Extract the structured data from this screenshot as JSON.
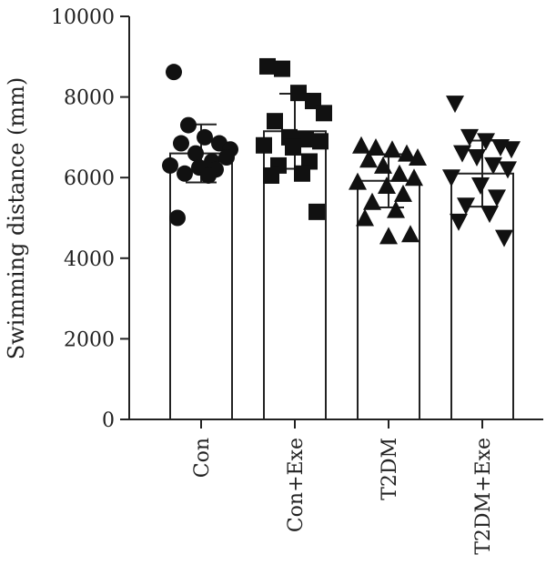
{
  "chart_data": {
    "type": "bar",
    "title": "",
    "xlabel": "",
    "ylabel": "Swimming distance (mm)",
    "ylim": [
      0,
      10000
    ],
    "yticks": [
      0,
      2000,
      4000,
      6000,
      8000,
      10000
    ],
    "grid": false,
    "legend": "none",
    "categories": [
      "Con",
      "Con+Exe",
      "T2DM",
      "T2DM+Exe"
    ],
    "means": [
      6600,
      7150,
      5920,
      6100
    ],
    "error_upper": [
      7320,
      8080,
      6580,
      6920
    ],
    "error_lower": [
      5880,
      6220,
      5260,
      5280
    ],
    "markers": [
      "circle",
      "square",
      "triangle-up",
      "triangle-down"
    ],
    "points": [
      [
        8620,
        7300,
        7000,
        6850,
        6700,
        6850,
        6600,
        6400,
        6500,
        6300,
        6250,
        6200,
        6100,
        6050,
        5000
      ],
      [
        8760,
        8700,
        8100,
        7900,
        7600,
        7400,
        7000,
        6950,
        6900,
        6800,
        6750,
        6400,
        6300,
        6100,
        6050,
        5150
      ],
      [
        6800,
        6750,
        6700,
        6600,
        6500,
        6450,
        6300,
        6100,
        6000,
        5900,
        5800,
        5600,
        5400,
        5200,
        5000,
        4600,
        4550
      ],
      [
        7830,
        7000,
        6900,
        6750,
        6700,
        6600,
        6500,
        6300,
        6200,
        6000,
        5800,
        5500,
        5300,
        5100,
        4900,
        4500
      ]
    ],
    "point_color": "#111111",
    "bar_fill": "#ffffff",
    "line_color": "#222222"
  }
}
